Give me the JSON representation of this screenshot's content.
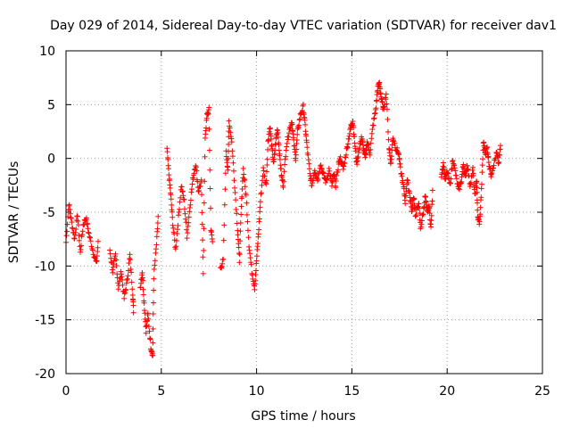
{
  "chart_data": {
    "type": "scatter",
    "title": "Day 029 of 2014, Sidereal Day-to-day VTEC variation (SDTVAR) for receiver dav1",
    "xlabel": "GPS time / hours",
    "ylabel": "SDTVAR / TECUs",
    "xlim": [
      0,
      25
    ],
    "ylim": [
      -20,
      10
    ],
    "xticks": [
      0,
      5,
      10,
      15,
      20,
      25
    ],
    "yticks": [
      -20,
      -15,
      -10,
      -5,
      0,
      5,
      10
    ],
    "grid": true,
    "marker": "plus",
    "color": "#ff0000",
    "trace": [
      [
        0.0,
        -7.8
      ],
      [
        0.15,
        -4.2
      ],
      [
        0.3,
        -6.0
      ],
      [
        0.45,
        -7.5
      ],
      [
        0.6,
        -5.2
      ],
      [
        0.75,
        -8.8
      ],
      [
        0.9,
        -6.2
      ],
      [
        1.05,
        -5.5
      ],
      [
        1.2,
        -7.0
      ],
      [
        1.4,
        -8.5
      ],
      [
        1.6,
        -9.8
      ],
      [
        1.7,
        -7.5
      ],
      [
        2.3,
        -8.5
      ],
      [
        2.45,
        -10.5
      ],
      [
        2.6,
        -9.0
      ],
      [
        2.75,
        -12.0
      ],
      [
        2.9,
        -10.5
      ],
      [
        3.05,
        -13.0
      ],
      [
        3.2,
        -11.5
      ],
      [
        3.35,
        -9.0
      ],
      [
        3.5,
        -12.5
      ],
      [
        3.55,
        -14.5
      ],
      [
        3.9,
        -12.0
      ],
      [
        4.0,
        -10.5
      ],
      [
        4.1,
        -13.5
      ],
      [
        4.2,
        -16.0
      ],
      [
        4.3,
        -14.5
      ],
      [
        4.45,
        -17.5
      ],
      [
        4.55,
        -18.3
      ],
      [
        4.6,
        -11.0
      ],
      [
        4.75,
        -8.0
      ],
      [
        4.85,
        -5.0
      ],
      [
        5.3,
        0.8
      ],
      [
        5.4,
        -1.5
      ],
      [
        5.5,
        -3.5
      ],
      [
        5.6,
        -6.0
      ],
      [
        5.75,
        -8.5
      ],
      [
        5.9,
        -5.5
      ],
      [
        6.05,
        -2.5
      ],
      [
        6.2,
        -4.0
      ],
      [
        6.35,
        -7.2
      ],
      [
        6.5,
        -4.5
      ],
      [
        6.65,
        -2.0
      ],
      [
        6.8,
        -0.5
      ],
      [
        6.95,
        -3.0
      ],
      [
        7.1,
        -2.2
      ],
      [
        7.2,
        -10.5
      ],
      [
        7.3,
        2.0
      ],
      [
        7.4,
        4.0
      ],
      [
        7.5,
        4.5
      ],
      [
        7.6,
        -6.5
      ],
      [
        7.7,
        -8.0
      ],
      [
        8.1,
        -10.2
      ],
      [
        8.25,
        -9.5
      ],
      [
        8.4,
        0.5
      ],
      [
        8.5,
        -1.0
      ],
      [
        8.55,
        3.5
      ],
      [
        8.7,
        1.5
      ],
      [
        8.85,
        -2.5
      ],
      [
        9.0,
        -6.5
      ],
      [
        9.1,
        -9.5
      ],
      [
        9.2,
        -4.5
      ],
      [
        9.3,
        -1.0
      ],
      [
        9.45,
        -3.5
      ],
      [
        9.6,
        -8.0
      ],
      [
        9.75,
        -10.5
      ],
      [
        9.9,
        -12.0
      ],
      [
        10.0,
        -9.5
      ],
      [
        10.1,
        -7.0
      ],
      [
        10.2,
        -4.0
      ],
      [
        10.35,
        -1.0
      ],
      [
        10.5,
        -2.5
      ],
      [
        10.6,
        1.5
      ],
      [
        10.7,
        3.0
      ],
      [
        10.8,
        1.0
      ],
      [
        10.9,
        -0.5
      ],
      [
        11.0,
        1.5
      ],
      [
        11.1,
        2.8
      ],
      [
        11.2,
        0.5
      ],
      [
        11.3,
        -1.5
      ],
      [
        11.4,
        -2.5
      ],
      [
        11.55,
        1.0
      ],
      [
        11.7,
        2.5
      ],
      [
        11.85,
        3.5
      ],
      [
        11.95,
        1.5
      ],
      [
        12.05,
        0.0
      ],
      [
        12.15,
        2.5
      ],
      [
        12.3,
        4.0
      ],
      [
        12.45,
        4.8
      ],
      [
        12.55,
        3.0
      ],
      [
        12.65,
        1.0
      ],
      [
        12.8,
        -1.5
      ],
      [
        12.9,
        -2.5
      ],
      [
        13.05,
        -1.0
      ],
      [
        13.2,
        -2.0
      ],
      [
        13.35,
        -0.5
      ],
      [
        13.5,
        -1.5
      ],
      [
        13.65,
        -2.2
      ],
      [
        13.8,
        -1.0
      ],
      [
        13.95,
        -2.5
      ],
      [
        14.05,
        -1.5
      ],
      [
        14.15,
        -2.5
      ],
      [
        14.3,
        -0.5
      ],
      [
        14.4,
        0.0
      ],
      [
        14.55,
        -1.0
      ],
      [
        14.7,
        0.5
      ],
      [
        14.85,
        2.0
      ],
      [
        14.95,
        3.0
      ],
      [
        15.05,
        3.5
      ],
      [
        15.15,
        1.5
      ],
      [
        15.25,
        -0.5
      ],
      [
        15.35,
        0.5
      ],
      [
        15.5,
        2.0
      ],
      [
        15.6,
        1.0
      ],
      [
        15.7,
        0.0
      ],
      [
        15.8,
        1.5
      ],
      [
        15.95,
        0.5
      ],
      [
        16.1,
        3.0
      ],
      [
        16.25,
        4.5
      ],
      [
        16.35,
        6.5
      ],
      [
        16.45,
        7.0
      ],
      [
        16.55,
        5.5
      ],
      [
        16.65,
        4.5
      ],
      [
        16.8,
        6.0
      ],
      [
        16.95,
        1.0
      ],
      [
        17.05,
        -0.5
      ],
      [
        17.15,
        2.0
      ],
      [
        17.3,
        1.0
      ],
      [
        17.45,
        0.5
      ],
      [
        17.55,
        -1.0
      ],
      [
        17.7,
        -2.5
      ],
      [
        17.8,
        -4.0
      ],
      [
        17.9,
        -2.0
      ],
      [
        18.05,
        -3.5
      ],
      [
        18.15,
        -5.0
      ],
      [
        18.25,
        -3.5
      ],
      [
        18.35,
        -5.5
      ],
      [
        18.5,
        -4.0
      ],
      [
        18.6,
        -6.5
      ],
      [
        18.75,
        -5.0
      ],
      [
        18.85,
        -3.5
      ],
      [
        18.95,
        -5.0
      ],
      [
        19.05,
        -4.5
      ],
      [
        19.15,
        -6.5
      ],
      [
        19.25,
        -2.5
      ],
      [
        19.7,
        -1.5
      ],
      [
        19.8,
        -0.5
      ],
      [
        19.9,
        -2.0
      ],
      [
        20.0,
        -1.2
      ],
      [
        20.15,
        -2.5
      ],
      [
        20.3,
        0.0
      ],
      [
        20.45,
        -1.5
      ],
      [
        20.6,
        -3.0
      ],
      [
        20.75,
        -2.0
      ],
      [
        20.85,
        -0.5
      ],
      [
        20.95,
        -1.8
      ],
      [
        21.05,
        -0.5
      ],
      [
        21.2,
        -2.5
      ],
      [
        21.35,
        -1.0
      ],
      [
        21.45,
        -3.5
      ],
      [
        21.55,
        -2.0
      ],
      [
        21.6,
        -5.5
      ],
      [
        21.7,
        -6.0
      ],
      [
        21.8,
        -3.0
      ],
      [
        21.9,
        1.5
      ],
      [
        22.0,
        0.5
      ],
      [
        22.1,
        1.0
      ],
      [
        22.2,
        -0.5
      ],
      [
        22.3,
        -1.5
      ],
      [
        22.45,
        -0.5
      ],
      [
        22.6,
        0.5
      ],
      [
        22.7,
        -0.5
      ],
      [
        22.8,
        1.2
      ]
    ]
  }
}
